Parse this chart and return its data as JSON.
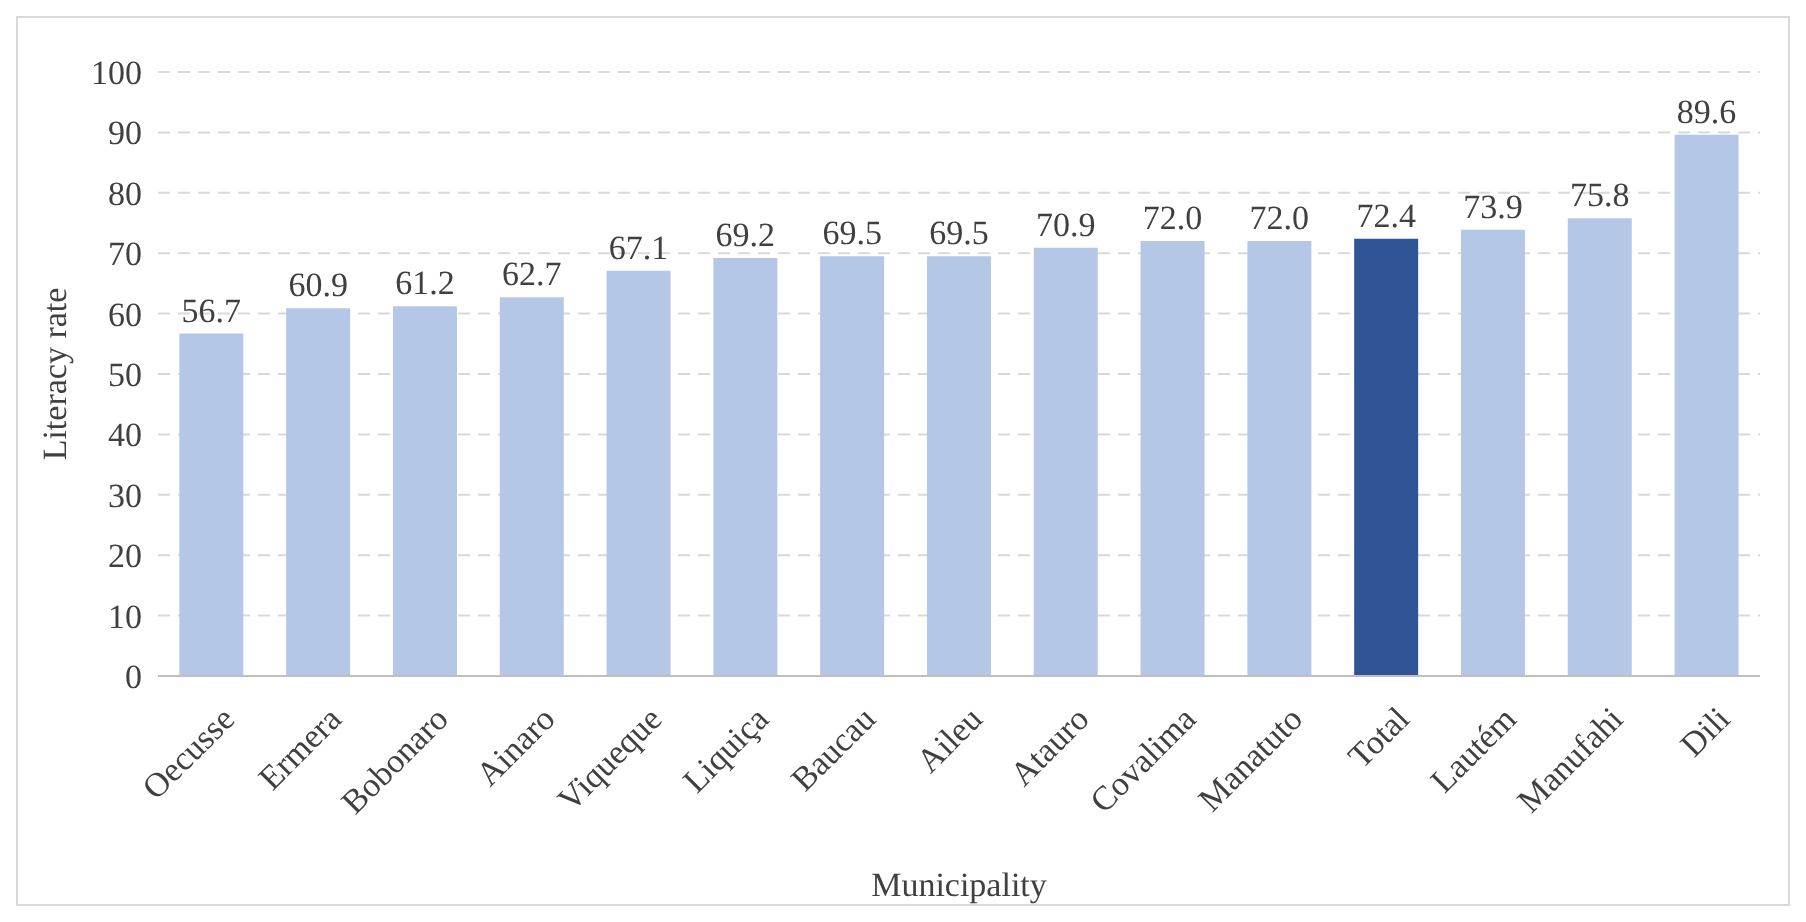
{
  "chart_data": {
    "type": "bar",
    "xlabel": "Municipality",
    "ylabel": "Literacy rate",
    "categories": [
      "Oecusse",
      "Ermera",
      "Bobonaro",
      "Ainaro",
      "Viqueque",
      "Liquiça",
      "Baucau",
      "Aileu",
      "Atauro",
      "Covalima",
      "Manatuto",
      "Total",
      "Lautém",
      "Manufahi",
      "Dili"
    ],
    "values": [
      56.7,
      60.9,
      61.2,
      62.7,
      67.1,
      69.2,
      69.5,
      69.5,
      70.9,
      72.0,
      72.0,
      72.4,
      73.9,
      75.8,
      89.6
    ],
    "value_labels": [
      "56.7",
      "60.9",
      "61.2",
      "62.7",
      "67.1",
      "69.2",
      "69.5",
      "69.5",
      "70.9",
      "72.0",
      "72.0",
      "72.4",
      "73.9",
      "75.8",
      "89.6"
    ],
    "colors": [
      "#b4c7e7",
      "#b4c7e7",
      "#b4c7e7",
      "#b4c7e7",
      "#b4c7e7",
      "#b4c7e7",
      "#b4c7e7",
      "#b4c7e7",
      "#b4c7e7",
      "#b4c7e7",
      "#b4c7e7",
      "#2f5597",
      "#b4c7e7",
      "#b4c7e7",
      "#b4c7e7"
    ],
    "ylim": [
      0,
      100
    ],
    "yticks": [
      0,
      10,
      20,
      30,
      40,
      50,
      60,
      70,
      80,
      90,
      100
    ],
    "grid": "y"
  }
}
